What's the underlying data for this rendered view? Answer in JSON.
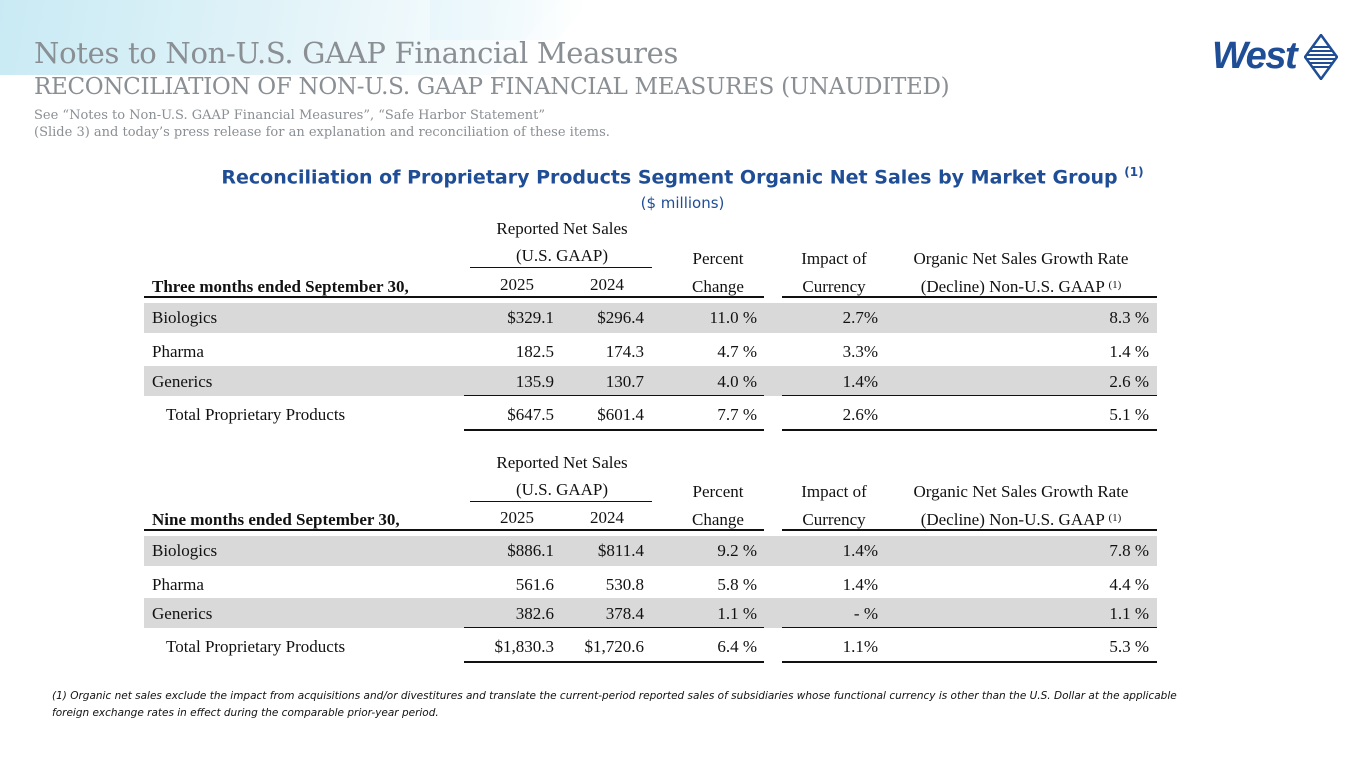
{
  "header": {
    "title": "Notes to Non-U.S. GAAP Financial Measures",
    "subtitle": "RECONCILIATION OF NON-U.S. GAAP FINANCIAL MEASURES (UNAUDITED)",
    "note_line1": "See “Notes to Non-U.S. GAAP Financial Measures”, “Safe Harbor Statement”",
    "note_line2": "(Slide 3) and today’s press release for an explanation and reconciliation of these items."
  },
  "logo": {
    "text": "West"
  },
  "report": {
    "title": "Reconciliation of Proprietary Products Segment Organic Net Sales by Market Group",
    "title_sup": "(1)",
    "units": "($ millions)"
  },
  "tables": [
    {
      "period": "Three months ended September 30,",
      "hdr_reported_1": "Reported Net Sales",
      "hdr_reported_2": "(U.S. GAAP)",
      "year1": "2025",
      "year2": "2024",
      "hdr_pct_1": "Percent",
      "hdr_pct_2": "Change",
      "hdr_fx_1": "Impact of",
      "hdr_fx_2": "Currency",
      "hdr_org_1": "Organic Net Sales Growth Rate",
      "hdr_org_2": "(Decline) Non-U.S. GAAP",
      "hdr_org_sup": "(1)",
      "rows": [
        {
          "label": "Biologics",
          "y1": "$329.1",
          "y2": "$296.4",
          "pct": "11.0 %",
          "fx": "2.7%",
          "org": "8.3 %"
        },
        {
          "label": "Pharma",
          "y1": "182.5",
          "y2": "174.3",
          "pct": "4.7 %",
          "fx": "3.3%",
          "org": "1.4 %"
        },
        {
          "label": "Generics",
          "y1": "135.9",
          "y2": "130.7",
          "pct": "4.0 %",
          "fx": "1.4%",
          "org": "2.6 %"
        },
        {
          "label": "Total Proprietary Products",
          "y1": "$647.5",
          "y2": "$601.4",
          "pct": "7.7 %",
          "fx": "2.6%",
          "org": "5.1 %"
        }
      ]
    },
    {
      "period": "Nine months ended September 30,",
      "hdr_reported_1": "Reported Net Sales",
      "hdr_reported_2": "(U.S. GAAP)",
      "year1": "2025",
      "year2": "2024",
      "hdr_pct_1": "Percent",
      "hdr_pct_2": "Change",
      "hdr_fx_1": "Impact of",
      "hdr_fx_2": "Currency",
      "hdr_org_1": "Organic Net Sales Growth Rate",
      "hdr_org_2": "(Decline) Non-U.S. GAAP",
      "hdr_org_sup": "(1)",
      "rows": [
        {
          "label": "Biologics",
          "y1": "$886.1",
          "y2": "$811.4",
          "pct": "9.2 %",
          "fx": "1.4%",
          "org": "7.8 %"
        },
        {
          "label": "Pharma",
          "y1": "561.6",
          "y2": "530.8",
          "pct": "5.8 %",
          "fx": "1.4%",
          "org": "4.4 %"
        },
        {
          "label": "Generics",
          "y1": "382.6",
          "y2": "378.4",
          "pct": "1.1 %",
          "fx": "- %",
          "org": "1.1 %"
        },
        {
          "label": "Total Proprietary Products",
          "y1": "$1,830.3",
          "y2": "$1,720.6",
          "pct": "6.4 %",
          "fx": "1.1%",
          "org": "5.3 %"
        }
      ]
    }
  ],
  "footnote": {
    "line1": "(1)  Organic net sales exclude the impact from acquisitions and/or divestitures and translate the current-period reported sales of subsidiaries whose functional currency is other than the U.S. Dollar at the applicable",
    "line2": "foreign exchange rates in effect during the comparable prior-year period."
  },
  "colors": {
    "brand_blue": "#1f4e96",
    "header_grey": "#8a8f94",
    "band_grey": "#d9d9d9"
  }
}
